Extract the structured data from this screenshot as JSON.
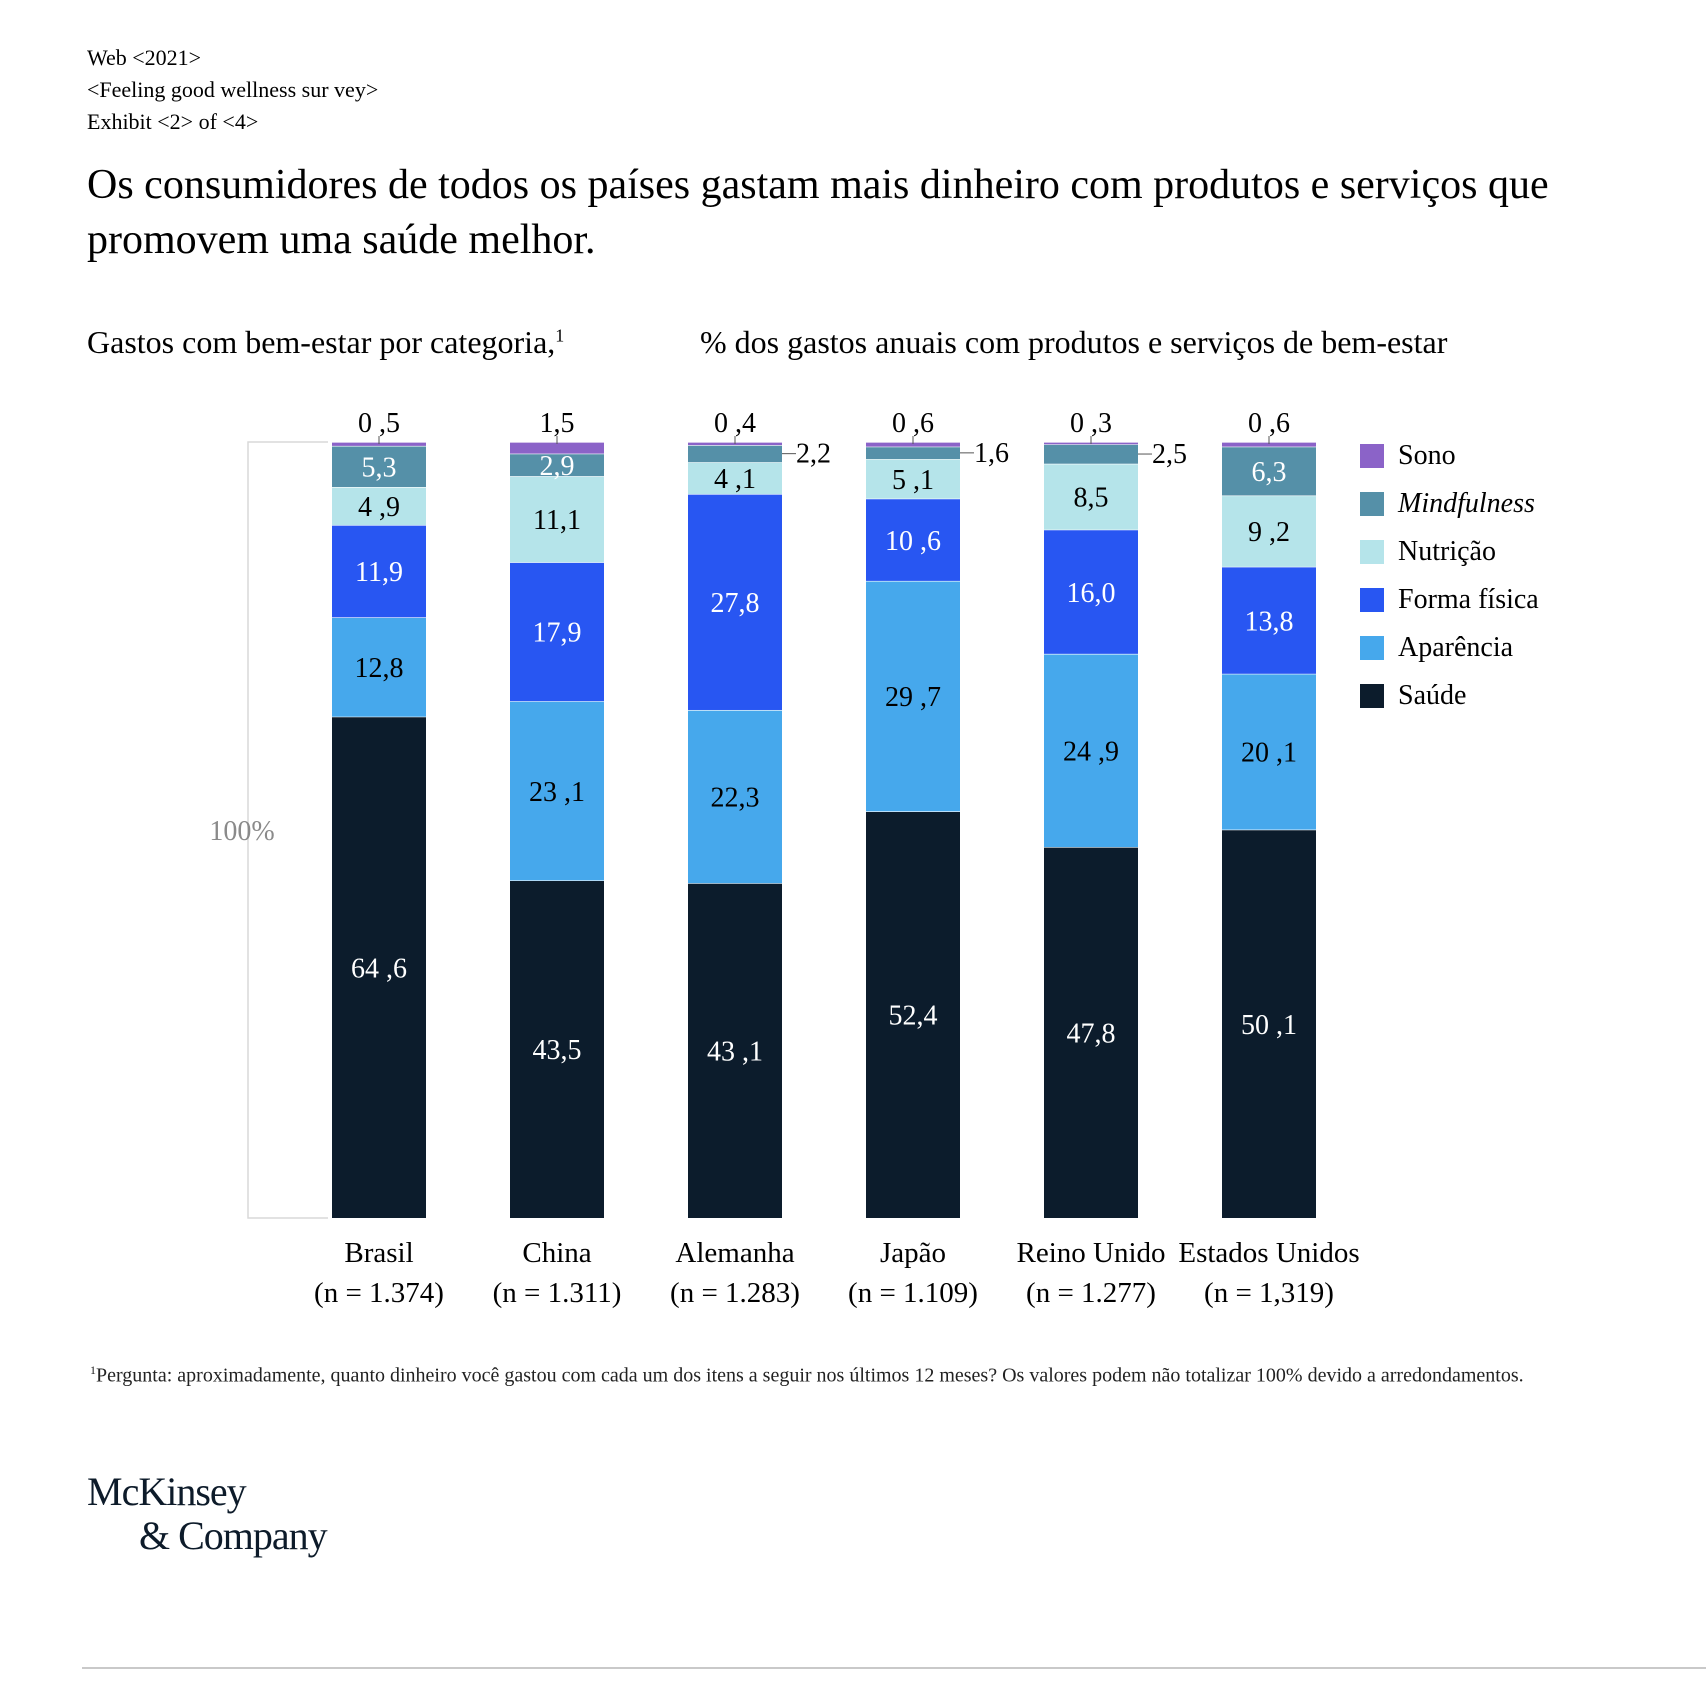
{
  "meta": {
    "line1": "Web <2021>",
    "line2": "<Feeling good  wellness sur vey>",
    "line3": "Exhibit <2> of <4>"
  },
  "title": "Os consumidores de todos os países gastam mais dinheiro com produtos e serviços que promovem uma saúde melhor.",
  "subtitle_left": "Gastos com bem-estar por categoria,",
  "subtitle_left_note": "1",
  "subtitle_right": "% dos gastos anuais com produtos e serviços de bem-estar",
  "footnote_marker": "1",
  "footnote": "Pergunta: aproximadamente, quanto dinheiro você gastou com cada um dos itens a seguir nos últimos 12 meses? Os valores podem não totalizar 100% devido a arredondamentos.",
  "logo": {
    "line1": "McKinsey",
    "line2": "& Company"
  },
  "chart_data": {
    "type": "bar",
    "stacked": true,
    "total_label": "100%",
    "ylim": [
      0,
      100
    ],
    "categories": [
      "Brasil",
      "China",
      "Alemanha",
      "Japão",
      "Reino Unido",
      "Estados  Unidos"
    ],
    "category_n": [
      "(n = 1.374)",
      "(n = 1.311)",
      "(n = 1.283)",
      "(n = 1.109)",
      "(n = 1.277)",
      "(n = 1,319)"
    ],
    "series": [
      {
        "name": "Saúde",
        "color": "#0c1c2c",
        "text_color": "#ffffff",
        "values": [
          64.6,
          43.5,
          43.1,
          52.4,
          47.8,
          50.1
        ],
        "labels": [
          "64 ,6",
          "43,5",
          "43 ,1",
          "52,4",
          "47,8",
          "50 ,1"
        ]
      },
      {
        "name": "Aparência",
        "color": "#46a8ec",
        "text_color": "#000000",
        "values": [
          12.8,
          23.1,
          22.3,
          29.7,
          24.9,
          20.1
        ],
        "labels": [
          "12,8",
          "23 ,1",
          "22,3",
          "29 ,7",
          "24 ,9",
          "20 ,1"
        ]
      },
      {
        "name": "Forma física",
        "color": "#2856f2",
        "text_color": "#ffffff",
        "values": [
          11.9,
          17.9,
          27.8,
          10.6,
          16.0,
          13.8
        ],
        "labels": [
          "11,9",
          "17,9",
          "27,8",
          "10 ,6",
          "16,0",
          "13,8"
        ]
      },
      {
        "name": "Nutrição",
        "color": "#b5e4ea",
        "text_color": "#000000",
        "values": [
          4.9,
          11.1,
          4.1,
          5.1,
          8.5,
          9.2
        ],
        "labels": [
          "4 ,9",
          "11,1",
          "4 ,1",
          "5 ,1",
          "8,5",
          "9 ,2"
        ]
      },
      {
        "name": "Mindfulness",
        "color": "#5590a8",
        "text_color": "#ffffff",
        "italic": true,
        "values": [
          5.3,
          2.9,
          2.2,
          1.6,
          2.5,
          6.3
        ],
        "labels": [
          "5,3",
          "2,9",
          "2,2",
          "1,6",
          "2,5",
          "6,3"
        ],
        "label_outside": [
          false,
          false,
          true,
          true,
          true,
          false
        ]
      },
      {
        "name": "Sono",
        "color": "#8b63c8",
        "text_color": "#000000",
        "values": [
          0.5,
          1.5,
          0.4,
          0.6,
          0.3,
          0.6
        ],
        "labels": [
          "0 ,5",
          "1,5",
          "0 ,4",
          "0 ,6",
          "0 ,3",
          "0 ,6"
        ],
        "label_above": true
      }
    ],
    "legend_position": "right",
    "grid": false
  }
}
